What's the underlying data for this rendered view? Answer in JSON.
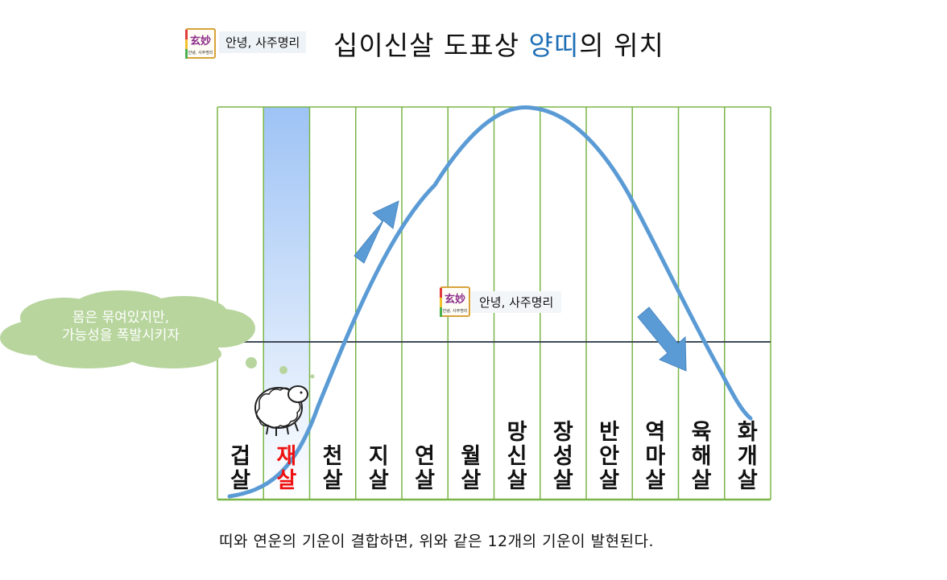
{
  "header": {
    "brand_label": "안녕, 사주명리",
    "logo_glyph": "玄妙",
    "logo_caption": "안녕, 사주명리",
    "title_prefix": "십이신살 도표상 ",
    "title_highlight": "양띠",
    "title_suffix": "의 위치",
    "highlight_color": "#1f6fb5"
  },
  "watermark": {
    "brand_label": "안녕, 사주명리",
    "logo_glyph": "玄妙"
  },
  "cloud_text": [
    "몸은 묶여있지만,",
    "가능성을 폭발시키자"
  ],
  "stages": [
    {
      "name": "겁살",
      "highlight": false
    },
    {
      "name": "재살",
      "highlight": true
    },
    {
      "name": "천살",
      "highlight": false
    },
    {
      "name": "지살",
      "highlight": false
    },
    {
      "name": "연살",
      "highlight": false
    },
    {
      "name": "월살",
      "highlight": false
    },
    {
      "name": "망신살",
      "highlight": false
    },
    {
      "name": "장성살",
      "highlight": false
    },
    {
      "name": "반안살",
      "highlight": false
    },
    {
      "name": "역마살",
      "highlight": false
    },
    {
      "name": "육해살",
      "highlight": false
    },
    {
      "name": "화개살",
      "highlight": false
    }
  ],
  "footer_text": "띠와 연운의 기운이 결합하면, 위와 같은 12개의 기운이 발현된다.",
  "colors": {
    "grid": "#7ab648",
    "curve": "#5b9bd5",
    "column_highlight": "#9ec3f5",
    "arrow": "#5b9bd5",
    "midline": "#3f4a56",
    "cloud": "#b7d59d",
    "stage_highlight": "#ee1111"
  }
}
